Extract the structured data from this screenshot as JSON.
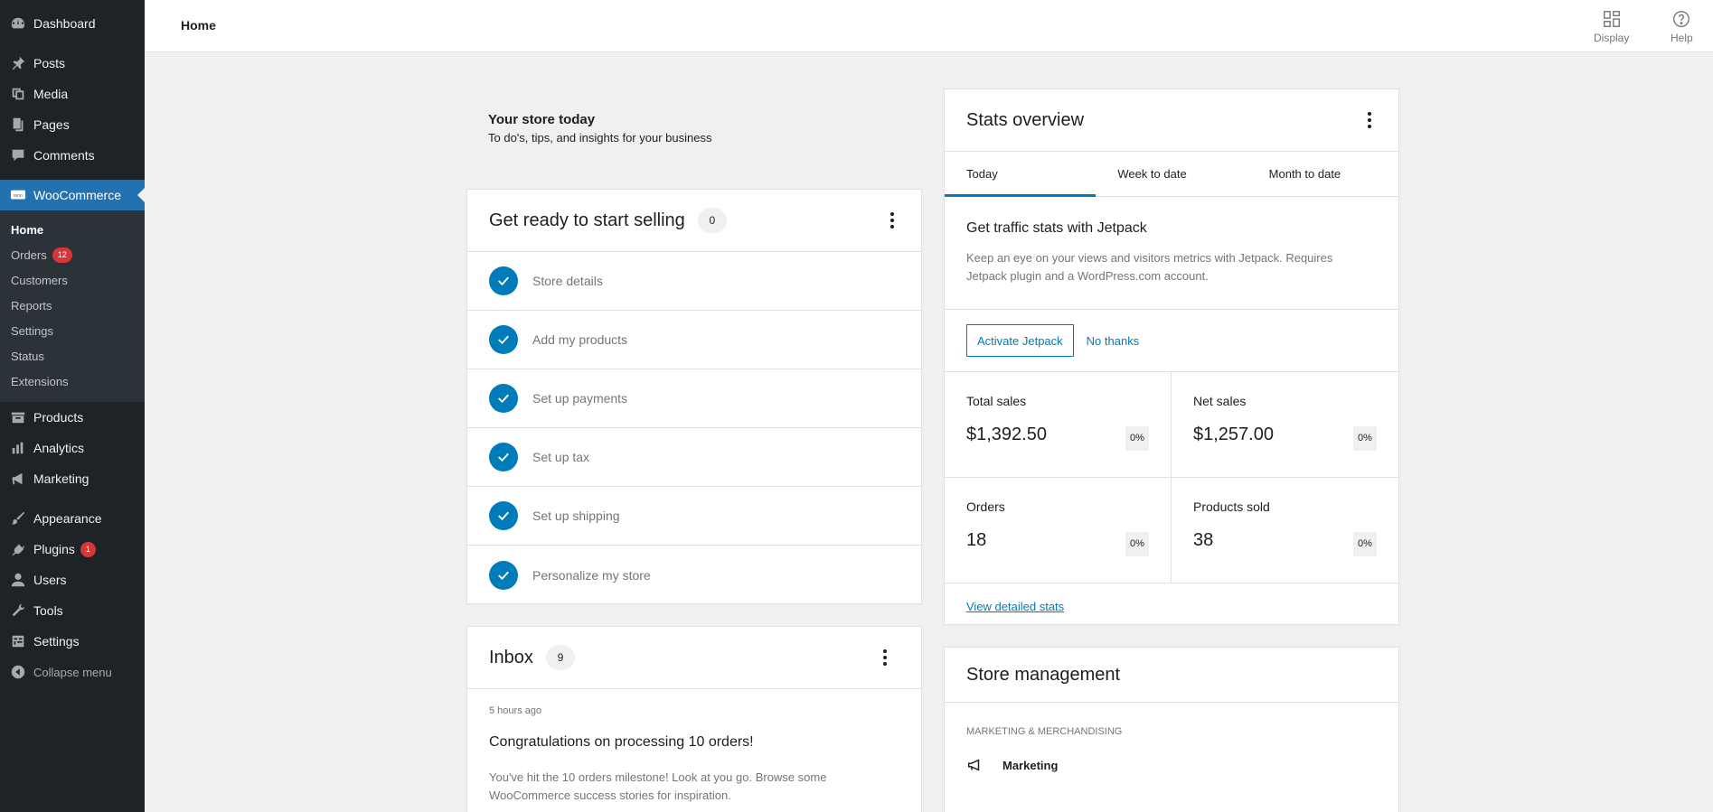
{
  "sidebar": {
    "top": [
      {
        "label": "Dashboard",
        "icon": "dashboard-icon"
      }
    ],
    "items_a": [
      {
        "label": "Posts",
        "icon": "pin-icon"
      },
      {
        "label": "Media",
        "icon": "media-icon"
      },
      {
        "label": "Pages",
        "icon": "pages-icon"
      },
      {
        "label": "Comments",
        "icon": "comment-icon"
      }
    ],
    "woocommerce": {
      "label": "WooCommerce",
      "icon": "woo-icon"
    },
    "submenu": [
      {
        "label": "Home"
      },
      {
        "label": "Orders",
        "badge": "12"
      },
      {
        "label": "Customers"
      },
      {
        "label": "Reports"
      },
      {
        "label": "Settings"
      },
      {
        "label": "Status"
      },
      {
        "label": "Extensions"
      }
    ],
    "items_b": [
      {
        "label": "Products",
        "icon": "archive-icon"
      },
      {
        "label": "Analytics",
        "icon": "bar-chart-icon"
      },
      {
        "label": "Marketing",
        "icon": "megaphone-icon"
      }
    ],
    "items_c": [
      {
        "label": "Appearance",
        "icon": "brush-icon"
      },
      {
        "label": "Plugins",
        "icon": "plug-icon",
        "badge": "1"
      },
      {
        "label": "Users",
        "icon": "user-icon"
      },
      {
        "label": "Tools",
        "icon": "wrench-icon"
      },
      {
        "label": "Settings",
        "icon": "settings-icon"
      }
    ],
    "collapse": "Collapse menu"
  },
  "header": {
    "title": "Home",
    "display": "Display",
    "help": "Help"
  },
  "intro": {
    "title": "Your store today",
    "subtitle": "To do's, tips, and insights for your business"
  },
  "tasks": {
    "title": "Get ready to start selling",
    "count": "0",
    "items": [
      "Store details",
      "Add my products",
      "Set up payments",
      "Set up tax",
      "Set up shipping",
      "Personalize my store"
    ]
  },
  "inbox": {
    "title": "Inbox",
    "count": "9",
    "time": "5 hours ago",
    "note_title": "Congratulations on processing 10 orders!",
    "note_line1": "You've hit the 10 orders milestone! Look at you go. Browse some",
    "note_line2": "WooCommerce success stories for inspiration."
  },
  "stats": {
    "title": "Stats overview",
    "tabs": [
      "Today",
      "Week to date",
      "Month to date"
    ],
    "jetpack_title": "Get traffic stats with Jetpack",
    "jetpack_line1": "Keep an eye on your views and visitors metrics with Jetpack. Requires",
    "jetpack_line2": "Jetpack plugin and a WordPress.com account.",
    "activate": "Activate Jetpack",
    "no_thanks": "No thanks",
    "cells": [
      {
        "label": "Total sales",
        "value": "$1,392.50",
        "delta": "0%"
      },
      {
        "label": "Net sales",
        "value": "$1,257.00",
        "delta": "0%"
      },
      {
        "label": "Orders",
        "value": "18",
        "delta": "0%"
      },
      {
        "label": "Products sold",
        "value": "38",
        "delta": "0%"
      }
    ],
    "view_link": "View detailed stats"
  },
  "store_mgmt": {
    "title": "Store management",
    "category": "MARKETING & MERCHANDISING",
    "item": "Marketing"
  },
  "colors": {
    "accent": "#007cba",
    "sidebar_bg": "#1d2327",
    "active": "#2271b1",
    "badge": "#d63638"
  }
}
